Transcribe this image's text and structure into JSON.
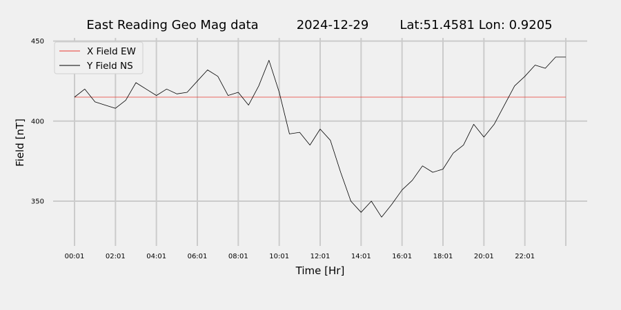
{
  "header": {
    "title_parts": [
      "East Reading Geo Mag data",
      "2024-12-29",
      "Lat:51.4581  Lon: 0.9205"
    ]
  },
  "chart_data": {
    "type": "line",
    "xlabel": "Time  [Hr]",
    "ylabel": "Field  [nT]",
    "x_unit": "hours",
    "x_range": [
      0,
      24
    ],
    "x_ticks": [
      0,
      2,
      4,
      6,
      8,
      10,
      12,
      14,
      16,
      18,
      20,
      22,
      24
    ],
    "x_tick_labels": [
      "00:01",
      "02:01",
      "04:01",
      "06:01",
      "08:01",
      "10:01",
      "12:01",
      "14:01",
      "16:01",
      "18:01",
      "20:01",
      "22:01",
      ""
    ],
    "ylim": [
      322,
      452
    ],
    "y_ticks": [
      350,
      400,
      450
    ],
    "y_tick_labels": [
      "350",
      "400",
      "450"
    ],
    "grid": true,
    "legend_position": "top-left",
    "series": [
      {
        "name": "X Field EW",
        "color": "#e8392f",
        "x": [
          0,
          1,
          2,
          3,
          4,
          5,
          6,
          7,
          8,
          9,
          10,
          11,
          12,
          13,
          14,
          15,
          16,
          17,
          18,
          19,
          20,
          21,
          22,
          23,
          24
        ],
        "values": [
          415,
          415,
          415,
          415,
          415,
          415,
          415,
          415,
          415,
          415,
          415,
          415,
          415,
          415,
          415,
          415,
          415,
          415,
          415,
          415,
          415,
          415,
          415,
          415,
          415
        ]
      },
      {
        "name": "Y Field NS",
        "color": "#000000",
        "x": [
          0,
          0.5,
          1,
          1.5,
          2,
          2.5,
          3,
          3.5,
          4,
          4.5,
          5,
          5.5,
          6,
          6.5,
          7,
          7.5,
          8,
          8.5,
          9,
          9.5,
          10,
          10.5,
          11,
          11.5,
          12,
          12.5,
          13,
          13.5,
          14,
          14.5,
          15,
          15.5,
          16,
          16.5,
          17,
          17.5,
          18,
          18.5,
          19,
          19.5,
          20,
          20.5,
          21,
          21.5,
          22,
          22.5,
          23,
          23.5,
          24
        ],
        "values": [
          415,
          420,
          412,
          410,
          408,
          413,
          424,
          420,
          416,
          420,
          417,
          418,
          425,
          432,
          428,
          416,
          418,
          410,
          422,
          438,
          418,
          392,
          393,
          385,
          395,
          388,
          368,
          350,
          343,
          350,
          340,
          348,
          357,
          363,
          372,
          368,
          370,
          380,
          385,
          398,
          390,
          398,
          410,
          422,
          428,
          435,
          433,
          440,
          440
        ]
      }
    ]
  }
}
